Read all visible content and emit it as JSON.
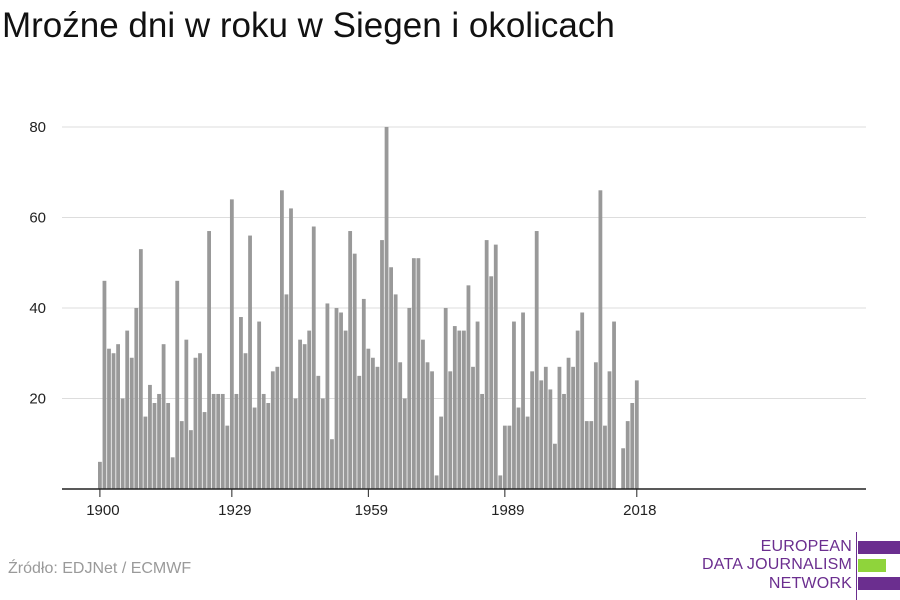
{
  "title": "Mroźne dni w roku w Siegen i okolicach",
  "source": "Źródło: EDJNet / ECMWF",
  "logo": {
    "line1": "EUROPEAN",
    "line2": "DATA JOURNALISM",
    "line3": "NETWORK"
  },
  "colors": {
    "bar": "#999999",
    "grid": "#dddddd",
    "axis": "#222222",
    "logo_purple": "#6b2e8f",
    "logo_green": "#8fd43b"
  },
  "chart_data": {
    "type": "bar",
    "x_start": 1900,
    "x_end": 2021,
    "x_ticks": [
      "1900",
      "1929",
      "1959",
      "1989",
      "2018"
    ],
    "y_ticks": [
      "20",
      "40",
      "60",
      "80"
    ],
    "ylim": [
      0,
      80
    ],
    "values": [
      6,
      46,
      31,
      30,
      32,
      20,
      35,
      29,
      40,
      53,
      16,
      23,
      19,
      21,
      32,
      19,
      7,
      46,
      15,
      33,
      13,
      29,
      30,
      17,
      57,
      21,
      21,
      21,
      14,
      64,
      21,
      38,
      30,
      56,
      18,
      37,
      21,
      19,
      26,
      27,
      66,
      43,
      62,
      20,
      33,
      32,
      35,
      58,
      25,
      20,
      41,
      11,
      40,
      39,
      35,
      57,
      52,
      25,
      42,
      31,
      29,
      27,
      55,
      80,
      49,
      43,
      28,
      20,
      40,
      51,
      51,
      33,
      28,
      26,
      3,
      16,
      40,
      26,
      36,
      35,
      35,
      45,
      27,
      37,
      21,
      55,
      47,
      54,
      3,
      14,
      14,
      37,
      18,
      39,
      16,
      26,
      57,
      24,
      27,
      22,
      10,
      27,
      21,
      29,
      27,
      35,
      39,
      15,
      15,
      28,
      66,
      14,
      26,
      37,
      0,
      9,
      15,
      19,
      24,
      0,
      0,
      0
    ]
  }
}
